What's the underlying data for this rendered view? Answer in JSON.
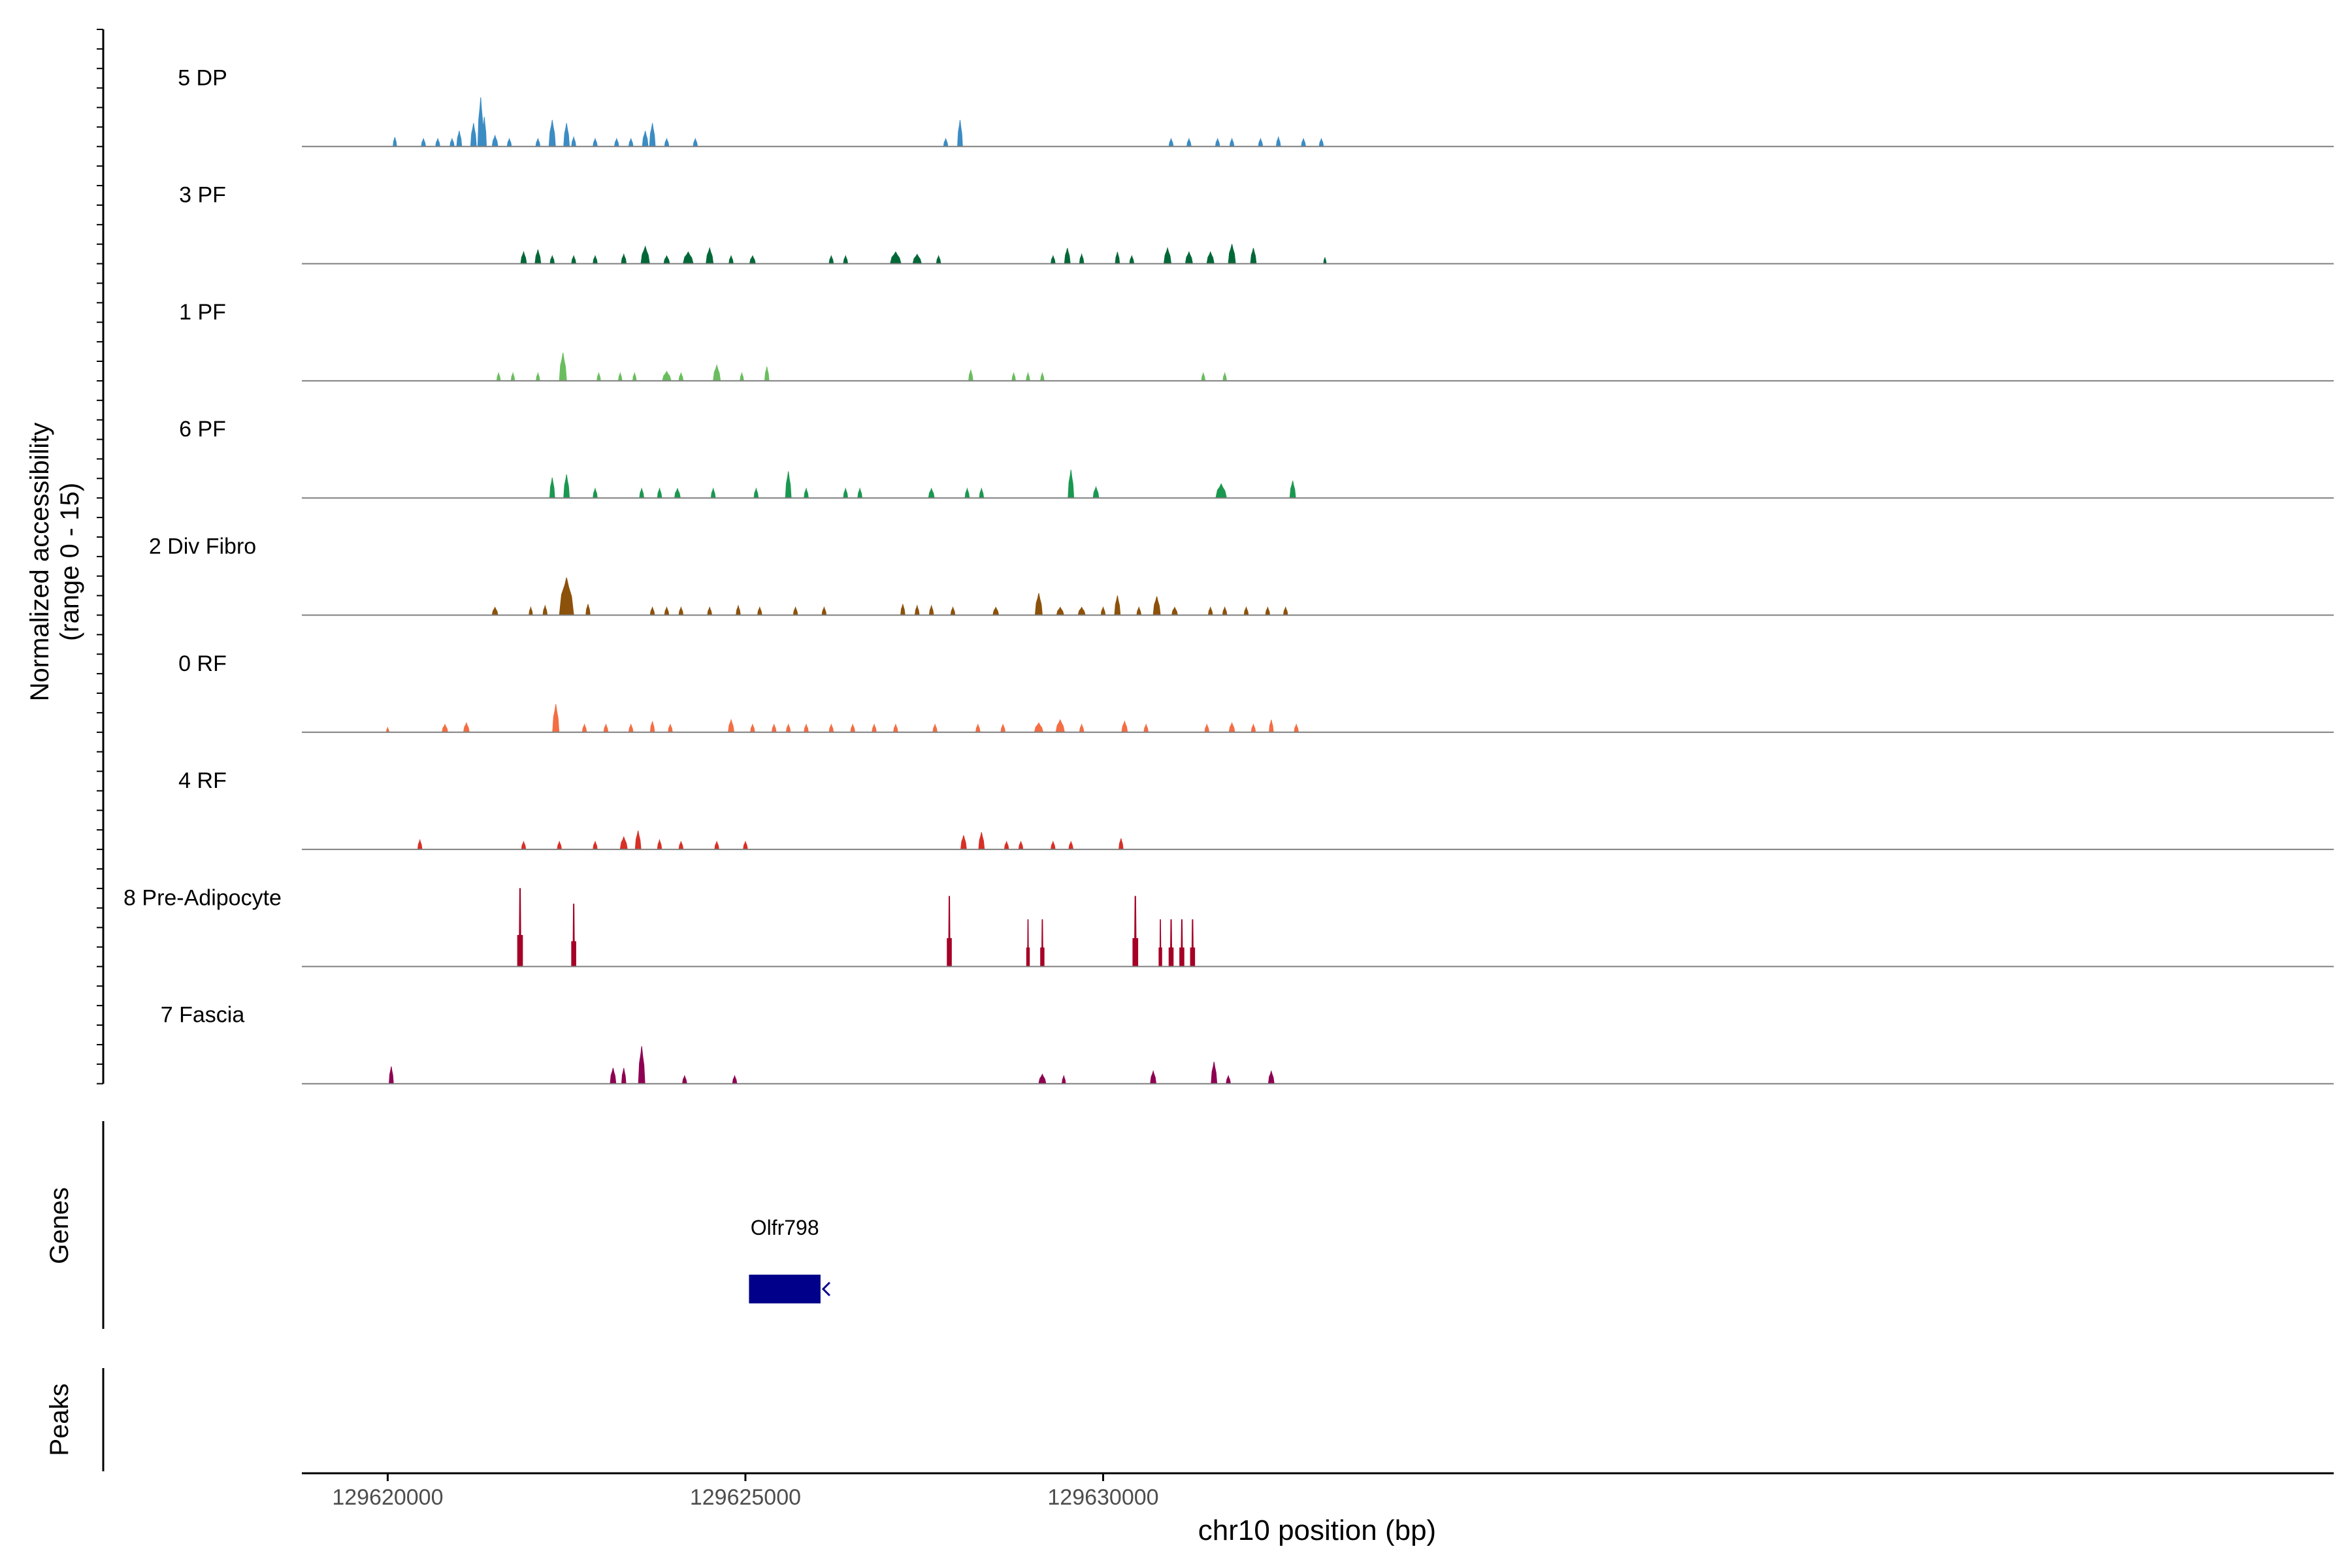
{
  "chart_data": {
    "type": "area",
    "title": "",
    "ylabel_line1": "Normalized accessibility",
    "ylabel_line2": "(range 0 - 15)",
    "xlabel": "chr10 position (bp)",
    "xlim": [
      129618800,
      129647200
    ],
    "ylim": [
      0,
      15
    ],
    "x_ticks": [
      129620000,
      129625000,
      129630000
    ],
    "x_tick_labels": [
      "129620000",
      "129625000",
      "129630000"
    ],
    "series": [
      {
        "name": "5 DP",
        "color": "#3B8CC4",
        "peaks": [
          [
            129620100,
            1.2,
            50
          ],
          [
            129620500,
            1.0,
            60
          ],
          [
            129620700,
            1.0,
            60
          ],
          [
            129620900,
            1.0,
            60
          ],
          [
            129621000,
            2.0,
            70
          ],
          [
            129621200,
            3.0,
            80
          ],
          [
            129621300,
            6.3,
            80
          ],
          [
            129621350,
            3.8,
            60
          ],
          [
            129621500,
            1.4,
            80
          ],
          [
            129621700,
            1.0,
            60
          ],
          [
            129622100,
            1.0,
            60
          ],
          [
            129622300,
            3.4,
            90
          ],
          [
            129622500,
            3.0,
            80
          ],
          [
            129622600,
            1.2,
            60
          ],
          [
            129622900,
            1.0,
            60
          ],
          [
            129623200,
            1.0,
            60
          ],
          [
            129623400,
            1.0,
            60
          ],
          [
            129623600,
            2.0,
            80
          ],
          [
            129623700,
            3.0,
            80
          ],
          [
            129623900,
            1.0,
            60
          ],
          [
            129624300,
            1.0,
            60
          ],
          [
            129627800,
            1.0,
            60
          ],
          [
            129628000,
            3.4,
            70
          ],
          [
            129630950,
            1.0,
            60
          ],
          [
            129631200,
            1.0,
            60
          ],
          [
            129631600,
            1.0,
            60
          ],
          [
            129631800,
            1.0,
            60
          ],
          [
            129632200,
            1.0,
            60
          ],
          [
            129632450,
            1.2,
            60
          ],
          [
            129632800,
            1.0,
            60
          ],
          [
            129633050,
            1.0,
            60
          ]
        ]
      },
      {
        "name": "3 PF",
        "color": "#006837",
        "peaks": [
          [
            129621900,
            1.5,
            80
          ],
          [
            129622100,
            1.8,
            80
          ],
          [
            129622300,
            1.0,
            60
          ],
          [
            129622600,
            1.0,
            60
          ],
          [
            129622900,
            1.0,
            60
          ],
          [
            129623300,
            1.2,
            70
          ],
          [
            129623600,
            2.2,
            120
          ],
          [
            129623900,
            1.0,
            80
          ],
          [
            129624200,
            1.5,
            140
          ],
          [
            129624500,
            2.0,
            100
          ],
          [
            129624800,
            1.0,
            60
          ],
          [
            129625100,
            1.0,
            80
          ],
          [
            129626200,
            1.0,
            60
          ],
          [
            129626400,
            1.0,
            60
          ],
          [
            129627100,
            1.5,
            150
          ],
          [
            129627400,
            1.2,
            120
          ],
          [
            129627700,
            1.0,
            60
          ],
          [
            129629300,
            1.0,
            60
          ],
          [
            129629500,
            2.0,
            80
          ],
          [
            129629700,
            1.2,
            60
          ],
          [
            129630200,
            1.5,
            60
          ],
          [
            129630400,
            1.0,
            60
          ],
          [
            129630900,
            2.0,
            100
          ],
          [
            129631200,
            1.5,
            100
          ],
          [
            129631500,
            1.5,
            100
          ],
          [
            129631800,
            2.5,
            100
          ],
          [
            129632100,
            2.0,
            80
          ],
          [
            129633100,
            0.8,
            30
          ]
        ]
      },
      {
        "name": "1 PF",
        "color": "#6ABD5E",
        "peaks": [
          [
            129621550,
            1.0,
            50
          ],
          [
            129621750,
            1.0,
            50
          ],
          [
            129622100,
            1.0,
            50
          ],
          [
            129622450,
            3.6,
            100
          ],
          [
            129622950,
            1.0,
            50
          ],
          [
            129623250,
            1.0,
            50
          ],
          [
            129623450,
            1.0,
            50
          ],
          [
            129623900,
            1.2,
            120
          ],
          [
            129624100,
            1.0,
            60
          ],
          [
            129624600,
            2.0,
            100
          ],
          [
            129624950,
            1.0,
            50
          ],
          [
            129625300,
            1.8,
            60
          ],
          [
            129628150,
            1.4,
            60
          ],
          [
            129628750,
            1.0,
            50
          ],
          [
            129628950,
            1.0,
            50
          ],
          [
            129629150,
            1.0,
            50
          ],
          [
            129631400,
            1.0,
            50
          ],
          [
            129631700,
            1.0,
            50
          ]
        ]
      },
      {
        "name": "6 PF",
        "color": "#1A9850",
        "peaks": [
          [
            129622300,
            2.6,
            70
          ],
          [
            129622500,
            3.0,
            80
          ],
          [
            129622900,
            1.2,
            60
          ],
          [
            129623550,
            1.2,
            60
          ],
          [
            129623800,
            1.2,
            60
          ],
          [
            129624050,
            1.2,
            80
          ],
          [
            129624550,
            1.2,
            60
          ],
          [
            129625150,
            1.2,
            60
          ],
          [
            129625600,
            3.4,
            80
          ],
          [
            129625850,
            1.2,
            60
          ],
          [
            129626400,
            1.2,
            60
          ],
          [
            129626600,
            1.2,
            60
          ],
          [
            129627600,
            1.2,
            80
          ],
          [
            129628100,
            1.2,
            60
          ],
          [
            129628300,
            1.2,
            60
          ],
          [
            129629550,
            3.6,
            80
          ],
          [
            129629900,
            1.4,
            80
          ],
          [
            129631650,
            1.8,
            150
          ],
          [
            129632650,
            2.2,
            80
          ]
        ]
      },
      {
        "name": "2 Div Fibro",
        "color": "#8C510A",
        "peaks": [
          [
            129621500,
            1.0,
            80
          ],
          [
            129622000,
            1.0,
            50
          ],
          [
            129622200,
            1.2,
            60
          ],
          [
            129622500,
            4.8,
            200
          ],
          [
            129622800,
            1.4,
            60
          ],
          [
            129623700,
            1.0,
            60
          ],
          [
            129623900,
            1.0,
            60
          ],
          [
            129624100,
            1.0,
            60
          ],
          [
            129624500,
            1.0,
            60
          ],
          [
            129624900,
            1.2,
            60
          ],
          [
            129625200,
            1.0,
            60
          ],
          [
            129625700,
            1.0,
            60
          ],
          [
            129626100,
            1.0,
            60
          ],
          [
            129627200,
            1.4,
            60
          ],
          [
            129627400,
            1.2,
            60
          ],
          [
            129627600,
            1.2,
            60
          ],
          [
            129627900,
            1.0,
            60
          ],
          [
            129628500,
            1.0,
            80
          ],
          [
            129629100,
            2.8,
            100
          ],
          [
            129629400,
            1.0,
            100
          ],
          [
            129629700,
            1.0,
            100
          ],
          [
            129630000,
            1.0,
            60
          ],
          [
            129630200,
            2.5,
            80
          ],
          [
            129630500,
            1.0,
            60
          ],
          [
            129630750,
            2.4,
            100
          ],
          [
            129631000,
            1.0,
            80
          ],
          [
            129631500,
            1.0,
            60
          ],
          [
            129631700,
            1.0,
            60
          ],
          [
            129632000,
            1.0,
            60
          ],
          [
            129632300,
            1.0,
            60
          ],
          [
            129632550,
            1.0,
            60
          ]
        ]
      },
      {
        "name": "0 RF",
        "color": "#F46D43",
        "peaks": [
          [
            129620000,
            0.6,
            20
          ],
          [
            129620800,
            1.0,
            80
          ],
          [
            129621100,
            1.2,
            80
          ],
          [
            129622350,
            3.6,
            90
          ],
          [
            129622750,
            1.0,
            60
          ],
          [
            129623050,
            1.0,
            60
          ],
          [
            129623400,
            1.0,
            60
          ],
          [
            129623700,
            1.4,
            60
          ],
          [
            129623950,
            1.0,
            60
          ],
          [
            129624800,
            1.6,
            80
          ],
          [
            129625100,
            1.0,
            60
          ],
          [
            129625400,
            1.0,
            60
          ],
          [
            129625600,
            1.0,
            60
          ],
          [
            129625850,
            1.0,
            60
          ],
          [
            129626200,
            1.0,
            60
          ],
          [
            129626500,
            1.0,
            60
          ],
          [
            129626800,
            1.0,
            60
          ],
          [
            129627100,
            1.0,
            60
          ],
          [
            129627650,
            1.0,
            60
          ],
          [
            129628250,
            1.0,
            60
          ],
          [
            129628600,
            1.0,
            60
          ],
          [
            129629100,
            1.2,
            120
          ],
          [
            129629400,
            1.6,
            120
          ],
          [
            129629700,
            1.0,
            60
          ],
          [
            129630300,
            1.4,
            80
          ],
          [
            129630600,
            1.0,
            60
          ],
          [
            129631450,
            1.0,
            60
          ],
          [
            129631800,
            1.2,
            80
          ],
          [
            129632100,
            1.0,
            60
          ],
          [
            129632350,
            1.6,
            60
          ],
          [
            129632700,
            1.0,
            60
          ]
        ]
      },
      {
        "name": "4 RF",
        "color": "#D73027",
        "peaks": [
          [
            129620450,
            1.2,
            60
          ],
          [
            129621900,
            1.0,
            60
          ],
          [
            129622400,
            1.0,
            60
          ],
          [
            129622900,
            1.0,
            60
          ],
          [
            129623300,
            1.6,
            100
          ],
          [
            129623500,
            2.4,
            80
          ],
          [
            129623800,
            1.2,
            60
          ],
          [
            129624100,
            1.0,
            60
          ],
          [
            129624600,
            1.0,
            60
          ],
          [
            129625000,
            1.0,
            60
          ],
          [
            129628050,
            1.8,
            80
          ],
          [
            129628300,
            2.2,
            80
          ],
          [
            129628650,
            1.0,
            60
          ],
          [
            129628850,
            1.0,
            60
          ],
          [
            129629300,
            1.0,
            60
          ],
          [
            129629550,
            1.0,
            60
          ],
          [
            129630250,
            1.4,
            60
          ]
        ]
      },
      {
        "name": "8 Pre-Adipocyte",
        "color": "#A50026",
        "peaks": [
          [
            129621850,
            10.0,
            70
          ],
          [
            129622600,
            8.0,
            60
          ],
          [
            129627850,
            9.0,
            60
          ],
          [
            129628950,
            6.0,
            40
          ],
          [
            129629150,
            6.0,
            50
          ],
          [
            129630450,
            9.0,
            70
          ],
          [
            129630800,
            6.0,
            40
          ],
          [
            129630950,
            6.0,
            60
          ],
          [
            129631100,
            6.0,
            60
          ],
          [
            129631250,
            6.0,
            60
          ]
        ]
      },
      {
        "name": "7 Fascia",
        "color": "#8E0152",
        "peaks": [
          [
            129620050,
            2.2,
            60
          ],
          [
            129623150,
            2.0,
            80
          ],
          [
            129623300,
            2.0,
            60
          ],
          [
            129623550,
            4.8,
            90
          ],
          [
            129624150,
            1.0,
            60
          ],
          [
            129624850,
            1.0,
            60
          ],
          [
            129629150,
            1.2,
            100
          ],
          [
            129629450,
            1.0,
            50
          ],
          [
            129630700,
            1.6,
            80
          ],
          [
            129631550,
            2.8,
            80
          ],
          [
            129631750,
            1.0,
            60
          ],
          [
            129632350,
            1.6,
            80
          ]
        ]
      }
    ],
    "genes": [
      {
        "name": "Olfr798",
        "start": 129625050,
        "end": 129626050,
        "strand": "-",
        "color": "#00008B"
      }
    ],
    "track_labels": [
      "Genes",
      "Peaks"
    ],
    "grid": false,
    "legend": "none"
  }
}
